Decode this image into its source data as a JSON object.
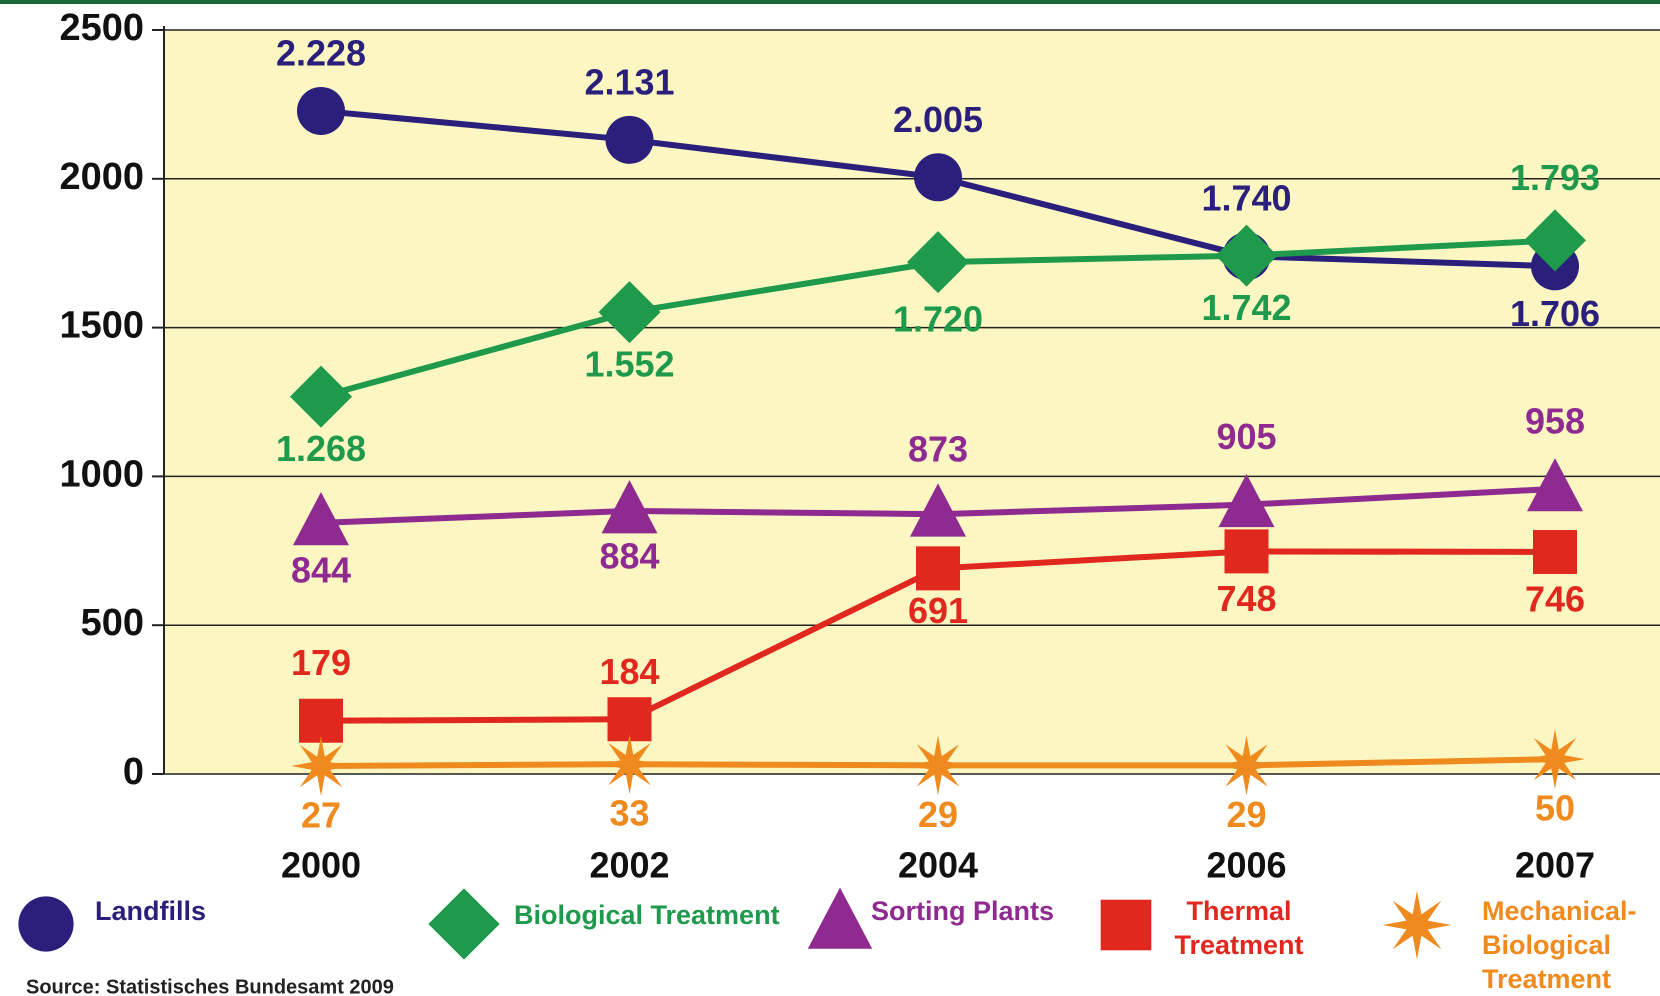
{
  "chart_data": {
    "type": "line",
    "categories": [
      "2000",
      "2002",
      "2004",
      "2006",
      "2007"
    ],
    "series": [
      {
        "name": "Landfills",
        "color": "#2b1f7c",
        "marker": "circle",
        "values": [
          2228,
          2131,
          2005,
          1740,
          1706
        ],
        "value_labels": [
          "2.228",
          "2.131",
          "2.005",
          "1.740",
          "1.706"
        ]
      },
      {
        "name": "Biological Treatment",
        "color": "#1f9a4c",
        "marker": "diamond",
        "values": [
          1268,
          1552,
          1720,
          1742,
          1793
        ],
        "value_labels": [
          "1.268",
          "1.552",
          "1.720",
          "1.742",
          "1.793"
        ]
      },
      {
        "name": "Sorting Plants",
        "color": "#8e2a90",
        "marker": "triangle",
        "values": [
          844,
          884,
          873,
          905,
          958
        ]
      },
      {
        "name": "Thermal Treatment",
        "color": "#e1281f",
        "marker": "square",
        "values": [
          179,
          184,
          691,
          748,
          746
        ]
      },
      {
        "name": "Mechanical-Biological Treatment",
        "color": "#ee8a1e",
        "marker": "star",
        "values": [
          27,
          33,
          29,
          29,
          50
        ]
      }
    ],
    "ylim": [
      0,
      2500
    ],
    "yticks": [
      0,
      500,
      1000,
      1500,
      2000,
      2500
    ],
    "grid": true,
    "source": "Source: Statistisches Bundesamt 2009"
  }
}
